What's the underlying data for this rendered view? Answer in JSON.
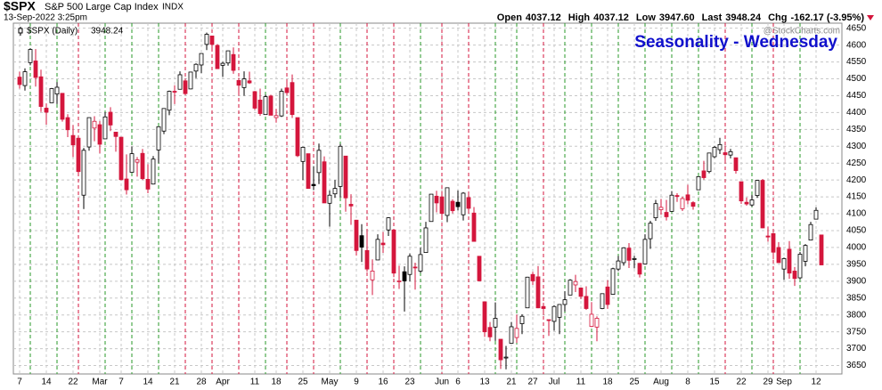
{
  "chart_data": {
    "type": "candlestick",
    "symbol": "$SPX",
    "name": "S&P 500 Large Cap Index",
    "exchange": "INDX",
    "timestamp": "13-Sep-2022 3:25pm",
    "watermark": "@StockCharts.com",
    "title": "Seasonality - Wednesday",
    "quote": [
      {
        "label": "Open",
        "value": 4037.12
      },
      {
        "label": "High",
        "value": 4037.12
      },
      {
        "label": "Low",
        "value": 3947.6,
        "value_label": "3947.60"
      },
      {
        "label": "Last",
        "value": 3948.24
      },
      {
        "label": "Chg",
        "value": -162.17,
        "value_label": "-162.17 (-3.95%)"
      }
    ],
    "legend_value": 3948.24,
    "colors": {
      "up": "#000000",
      "down": "#d4163c",
      "title": "#1010cc",
      "down_week": "#d4163c",
      "up_week": "#2a9a2a"
    },
    "grid": true,
    "ylim": [
      3625,
      4665
    ],
    "yticks": [
      3650,
      3700,
      3750,
      3800,
      3850,
      3900,
      3950,
      4000,
      4050,
      4100,
      4150,
      4200,
      4250,
      4300,
      4350,
      4400,
      4450,
      4500,
      4550,
      4600,
      4650
    ],
    "categories": [
      "7",
      null,
      null,
      null,
      null,
      "14",
      null,
      null,
      null,
      null,
      "22",
      null,
      null,
      null,
      null,
      "Mar",
      null,
      null,
      null,
      "7",
      null,
      null,
      null,
      null,
      "14",
      null,
      null,
      null,
      null,
      "21",
      null,
      null,
      null,
      null,
      "28",
      null,
      null,
      null,
      "Apr",
      null,
      null,
      null,
      null,
      null,
      "11",
      null,
      null,
      null,
      "18",
      null,
      null,
      null,
      null,
      "25",
      null,
      null,
      null,
      null,
      "May",
      null,
      null,
      null,
      null,
      "9",
      null,
      null,
      null,
      null,
      "16",
      null,
      null,
      null,
      null,
      "23",
      null,
      null,
      null,
      null,
      null,
      "Jun",
      null,
      null,
      "6",
      null,
      null,
      null,
      null,
      "13",
      null,
      null,
      null,
      null,
      "21",
      null,
      null,
      null,
      "27",
      null,
      null,
      null,
      "Jul",
      null,
      null,
      null,
      null,
      "11",
      null,
      null,
      null,
      null,
      "18",
      null,
      null,
      null,
      null,
      "25",
      null,
      null,
      null,
      null,
      "Aug",
      null,
      null,
      null,
      null,
      "8",
      null,
      null,
      null,
      null,
      "15",
      null,
      null,
      null,
      null,
      "22",
      null,
      null,
      null,
      null,
      "29",
      null,
      null,
      "Sep",
      null,
      null,
      null,
      null,
      null,
      "12",
      null
    ],
    "series": [
      {
        "name": "$SPX (Daily)",
        "open": [
          4505,
          4480,
          4548,
          4553,
          4506,
          4413,
          4429,
          4455,
          4457,
          4385,
          4332,
          4324,
          4155,
          4298,
          4354,
          4364,
          4322,
          4401,
          4342,
          4327,
          4203,
          4223,
          4253,
          4279,
          4202,
          4188,
          4289,
          4345,
          4407,
          4463,
          4469,
          4494,
          4470,
          4523,
          4541,
          4602,
          4627,
          4599,
          4540,
          4547,
          4572,
          4495,
          4474,
          4494,
          4462,
          4437,
          4394,
          4449,
          4385,
          4390,
          4473,
          4489,
          4385,
          4255,
          4278,
          4187,
          4222,
          4254,
          4131,
          4159,
          4181,
          4271,
          4128,
          4081,
          4035,
          3991,
          3904,
          3963,
          4013,
          4052,
          4052,
          3900,
          3928,
          3920,
          3942,
          3930,
          3985,
          4077,
          4152,
          4150,
          4095,
          4137,
          4134,
          4097,
          4148,
          4102,
          3974,
          3839,
          3763,
          3764,
          3728,
          3675,
          3716,
          3733,
          3774,
          3821,
          3920,
          3913,
          3825,
          3786,
          3781,
          3793,
          3831,
          3859,
          3889,
          3880,
          3855,
          3766,
          3764,
          3819,
          3883,
          3861,
          3936,
          3955,
          3998,
          3965,
          3953,
          3951,
          4026,
          4088,
          4112,
          4104,
          4107,
          4154,
          4115,
          4156,
          4133,
          4171,
          4227,
          4225,
          4269,
          4290,
          4281,
          4274,
          4266,
          4195,
          4134,
          4126,
          4154,
          4199,
          4034,
          4041,
          4000,
          3936,
          3995,
          3930,
          3910,
          3959,
          4022,
          4084,
          4037.12
        ],
        "high": [
          4521,
          4531,
          4590,
          4588,
          4527,
          4427,
          4473,
          4490,
          4457,
          4395,
          4363,
          4324,
          4295,
          4385,
          4389,
          4375,
          4401,
          4416,
          4342,
          4327,
          4276,
          4299,
          4268,
          4292,
          4247,
          4271,
          4358,
          4412,
          4465,
          4481,
          4522,
          4501,
          4520,
          4546,
          4575,
          4637,
          4627,
          4603,
          4550,
          4583,
          4593,
          4503,
          4522,
          4521,
          4464,
          4471,
          4453,
          4453,
          4411,
          4471,
          4489,
          4513,
          4385,
          4299,
          4278,
          4241,
          4308,
          4270,
          4169,
          4200,
          4307,
          4271,
          4158,
          4082,
          4069,
          4049,
          3965,
          4039,
          4046,
          4090,
          4052,
          3946,
          3944,
          3982,
          3955,
          3999,
          4076,
          4158,
          4168,
          4167,
          4177,
          4143,
          4169,
          4164,
          4160,
          4120,
          3974,
          3839,
          3779,
          3837,
          3728,
          3708,
          3779,
          3801,
          3802,
          3913,
          3928,
          3945,
          3836,
          3786,
          3829,
          3832,
          3870,
          3906,
          3919,
          3880,
          3885,
          3838,
          3796,
          3864,
          3903,
          3940,
          3975,
          4000,
          4013,
          3975,
          3954,
          4039,
          4079,
          4141,
          4144,
          4141,
          4167,
          4161,
          4151,
          4186,
          4137,
          4211,
          4257,
          4280,
          4301,
          4325,
          4302,
          4292,
          4266,
          4195,
          4148,
          4156,
          4200,
          4203,
          4062,
          4044,
          4016,
          3970,
          4019,
          3942,
          3987,
          4010,
          4076,
          4119,
          4037.12
        ],
        "low": [
          4471,
          4465,
          4540,
          4477,
          4402,
          4364,
          4429,
          4425,
          4373,
          4327,
          4268,
          4221,
          4114,
          4287,
          4315,
          4279,
          4322,
          4345,
          4284,
          4199,
          4157,
          4223,
          4210,
          4200,
          4161,
          4187,
          4251,
          4336,
          4392,
          4425,
          4469,
          4455,
          4469,
          4502,
          4517,
          4585,
          4581,
          4530,
          4506,
          4539,
          4515,
          4450,
          4450,
          4485,
          4408,
          4390,
          4393,
          4392,
          4370,
          4387,
          4455,
          4384,
          4268,
          4200,
          4175,
          4170,
          4188,
          4132,
          4062,
          4147,
          4148,
          4106,
          4067,
          3976,
          3957,
          3928,
          3859,
          3963,
          3984,
          4034,
          3912,
          3877,
          3810,
          3900,
          3875,
          3925,
          3985,
          4077,
          4104,
          4082,
          4075,
          4101,
          4110,
          4080,
          4107,
          4017,
          3900,
          3735,
          3722,
          3723,
          3640,
          3639,
          3716,
          3717,
          3743,
          3821,
          3889,
          3820,
          3800,
          3738,
          3753,
          3743,
          3810,
          3859,
          3868,
          3847,
          3815,
          3764,
          3722,
          3817,
          3818,
          3861,
          3930,
          3946,
          3939,
          3938,
          3911,
          3951,
          3996,
          4079,
          4097,
          4080,
          4107,
          4135,
          4108,
          4128,
          4112,
          4171,
          4201,
          4220,
          4265,
          4277,
          4253,
          4264,
          4219,
          4129,
          4124,
          4121,
          4147,
          4057,
          4017,
          3965,
          3954,
          3904,
          3907,
          3886,
          3906,
          3944,
          4022,
          4084,
          3947.6
        ],
        "close": [
          4483,
          4521,
          4587,
          4504,
          4418,
          4401,
          4471,
          4475,
          4380,
          4349,
          4304,
          4225,
          4288,
          4385,
          4374,
          4306,
          4387,
          4363,
          4329,
          4201,
          4171,
          4278,
          4260,
          4204,
          4173,
          4262,
          4358,
          4412,
          4463,
          4461,
          4512,
          4456,
          4520,
          4543,
          4575,
          4632,
          4602,
          4530,
          4546,
          4583,
          4525,
          4481,
          4500,
          4488,
          4413,
          4397,
          4447,
          4392,
          4391,
          4463,
          4459,
          4394,
          4272,
          4297,
          4175,
          4183,
          4288,
          4132,
          4155,
          4175,
          4300,
          4147,
          4123,
          3991,
          4001,
          3936,
          3930,
          4024,
          4008,
          4088,
          3924,
          3901,
          3901,
          3974,
          3941,
          3979,
          4058,
          4158,
          4132,
          4101,
          4177,
          4109,
          4121,
          4161,
          4116,
          4018,
          3901,
          3750,
          3735,
          3790,
          3667,
          3675,
          3765,
          3760,
          3796,
          3912,
          3901,
          3821,
          3819,
          3785,
          3825,
          3831,
          3845,
          3903,
          3899,
          3855,
          3819,
          3802,
          3790,
          3863,
          3831,
          3937,
          3960,
          3999,
          3962,
          3967,
          3921,
          4024,
          4072,
          4130,
          4119,
          4091,
          4155,
          4152,
          4145,
          4140,
          4122,
          4210,
          4207,
          4280,
          4297,
          4305,
          4275,
          4284,
          4228,
          4138,
          4129,
          4141,
          4199,
          4058,
          4031,
          3986,
          3955,
          3967,
          3924,
          3908,
          3980,
          4006,
          4068,
          4110,
          3948.24
        ]
      }
    ]
  }
}
